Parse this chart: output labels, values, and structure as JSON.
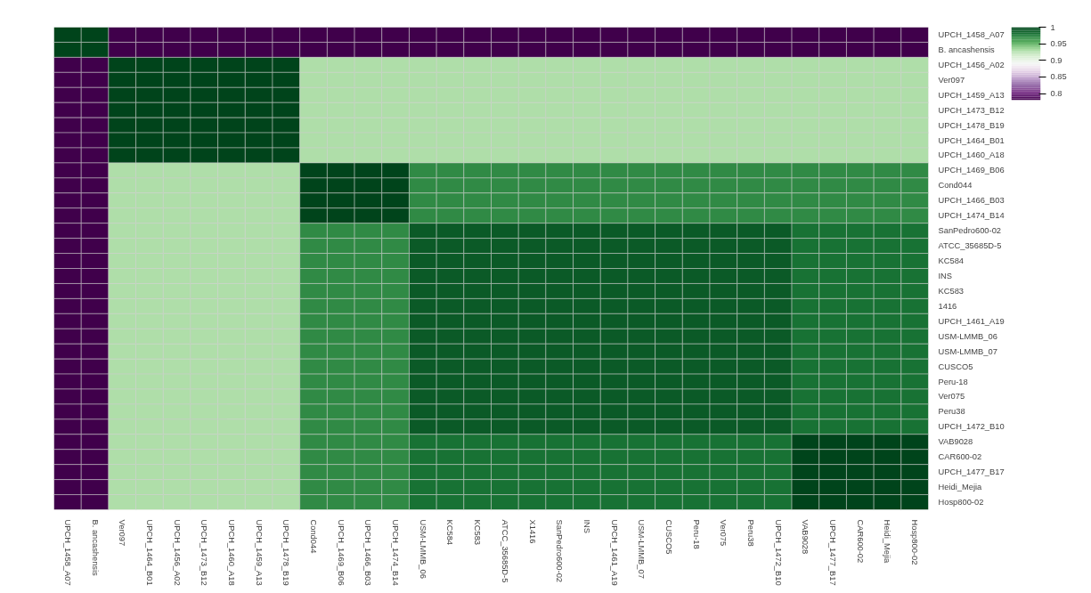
{
  "chart_data": {
    "type": "heatmap",
    "categories": [
      "UPCH_1458_A07",
      "B. ancashensis",
      "Ver097",
      "UPCH_1464_B01",
      "UPCH_1456_A02",
      "UPCH_1473_B12",
      "UPCH_1460_A18",
      "UPCH_1459_A13",
      "UPCH_1478_B19",
      "Cond044",
      "UPCH_1469_B06",
      "UPCH_1466_B03",
      "UPCH_1474_B14",
      "USM-LMMB_06",
      "KC584",
      "KC583",
      "ATCC_35685D-5",
      "X1416",
      "SanPedro600-02",
      "INS",
      "UPCH_1461_A19",
      "USM-LMMB_07",
      "CUSCO5",
      "Peru-18",
      "Ver075",
      "Peru38",
      "UPCH_1472_B10",
      "VAB9028",
      "UPCH_1477_B17",
      "CAR600-02",
      "Heidi_Mejia",
      "Hosp800-02"
    ],
    "y_categories": [
      "UPCH_1458_A07",
      "B. ancashensis",
      "UPCH_1456_A02",
      "Ver097",
      "UPCH_1459_A13",
      "UPCH_1473_B12",
      "UPCH_1478_B19",
      "UPCH_1464_B01",
      "UPCH_1460_A18",
      "UPCH_1469_B06",
      "Cond044",
      "UPCH_1466_B03",
      "UPCH_1474_B14",
      "SanPedro600-02",
      "ATCC_35685D-5",
      "KC584",
      "INS",
      "KC583",
      "1416",
      "UPCH_1461_A19",
      "USM-LMMB_06",
      "USM-LMMB_07",
      "CUSCO5",
      "Peru-18",
      "Ver075",
      "Peru38",
      "UPCH_1472_B10",
      "VAB9028",
      "CAR600-02",
      "UPCH_1477_B17",
      "Heidi_Mejia",
      "Hosp800-02"
    ],
    "cells": [
      [
        1,
        1,
        0.78,
        0.78,
        0.78,
        0.78,
        0.78,
        0.78,
        0.78,
        0.78,
        0.78,
        0.78,
        0.78,
        0.78,
        0.78,
        0.78,
        0.78,
        0.78,
        0.78,
        0.78,
        0.78,
        0.78,
        0.78,
        0.78,
        0.78,
        0.78,
        0.78,
        0.78,
        0.78,
        0.78,
        0.78,
        0.78
      ],
      [
        1,
        1,
        0.78,
        0.78,
        0.78,
        0.78,
        0.78,
        0.78,
        0.78,
        0.78,
        0.78,
        0.78,
        0.78,
        0.78,
        0.78,
        0.78,
        0.78,
        0.78,
        0.78,
        0.78,
        0.78,
        0.78,
        0.78,
        0.78,
        0.78,
        0.78,
        0.78,
        0.78,
        0.78,
        0.78,
        0.78,
        0.78
      ],
      [
        0.78,
        0.78,
        1,
        1,
        1,
        1,
        1,
        1,
        1,
        0.93,
        0.93,
        0.93,
        0.93,
        0.93,
        0.93,
        0.93,
        0.93,
        0.93,
        0.93,
        0.93,
        0.93,
        0.93,
        0.93,
        0.93,
        0.93,
        0.93,
        0.93,
        0.93,
        0.93,
        0.93,
        0.93,
        0.93
      ],
      [
        0.78,
        0.78,
        1,
        1,
        1,
        1,
        1,
        1,
        1,
        0.93,
        0.93,
        0.93,
        0.93,
        0.93,
        0.93,
        0.93,
        0.93,
        0.93,
        0.93,
        0.93,
        0.93,
        0.93,
        0.93,
        0.93,
        0.93,
        0.93,
        0.93,
        0.93,
        0.93,
        0.93,
        0.93,
        0.93
      ],
      [
        0.78,
        0.78,
        1,
        1,
        1,
        1,
        1,
        1,
        1,
        0.93,
        0.93,
        0.93,
        0.93,
        0.93,
        0.93,
        0.93,
        0.93,
        0.93,
        0.93,
        0.93,
        0.93,
        0.93,
        0.93,
        0.93,
        0.93,
        0.93,
        0.93,
        0.93,
        0.93,
        0.93,
        0.93,
        0.93
      ],
      [
        0.78,
        0.78,
        1,
        1,
        1,
        1,
        1,
        1,
        1,
        0.93,
        0.93,
        0.93,
        0.93,
        0.93,
        0.93,
        0.93,
        0.93,
        0.93,
        0.93,
        0.93,
        0.93,
        0.93,
        0.93,
        0.93,
        0.93,
        0.93,
        0.93,
        0.93,
        0.93,
        0.93,
        0.93,
        0.93
      ],
      [
        0.78,
        0.78,
        1,
        1,
        1,
        1,
        1,
        1,
        1,
        0.93,
        0.93,
        0.93,
        0.93,
        0.93,
        0.93,
        0.93,
        0.93,
        0.93,
        0.93,
        0.93,
        0.93,
        0.93,
        0.93,
        0.93,
        0.93,
        0.93,
        0.93,
        0.93,
        0.93,
        0.93,
        0.93,
        0.93
      ],
      [
        0.78,
        0.78,
        1,
        1,
        1,
        1,
        1,
        1,
        1,
        0.93,
        0.93,
        0.93,
        0.93,
        0.93,
        0.93,
        0.93,
        0.93,
        0.93,
        0.93,
        0.93,
        0.93,
        0.93,
        0.93,
        0.93,
        0.93,
        0.93,
        0.93,
        0.93,
        0.93,
        0.93,
        0.93,
        0.93
      ],
      [
        0.78,
        0.78,
        1,
        1,
        1,
        1,
        1,
        1,
        1,
        0.93,
        0.93,
        0.93,
        0.93,
        0.93,
        0.93,
        0.93,
        0.93,
        0.93,
        0.93,
        0.93,
        0.93,
        0.93,
        0.93,
        0.93,
        0.93,
        0.93,
        0.93,
        0.93,
        0.93,
        0.93,
        0.93,
        0.93
      ],
      [
        0.78,
        0.78,
        0.93,
        0.93,
        0.93,
        0.93,
        0.93,
        0.93,
        0.93,
        1,
        1,
        1,
        1,
        0.97,
        0.97,
        0.97,
        0.97,
        0.97,
        0.97,
        0.97,
        0.97,
        0.97,
        0.97,
        0.97,
        0.97,
        0.97,
        0.97,
        0.97,
        0.97,
        0.97,
        0.97,
        0.97
      ],
      [
        0.78,
        0.78,
        0.93,
        0.93,
        0.93,
        0.93,
        0.93,
        0.93,
        0.93,
        1,
        1,
        1,
        1,
        0.97,
        0.97,
        0.97,
        0.97,
        0.97,
        0.97,
        0.97,
        0.97,
        0.97,
        0.97,
        0.97,
        0.97,
        0.97,
        0.97,
        0.97,
        0.97,
        0.97,
        0.97,
        0.97
      ],
      [
        0.78,
        0.78,
        0.93,
        0.93,
        0.93,
        0.93,
        0.93,
        0.93,
        0.93,
        1,
        1,
        1,
        1,
        0.97,
        0.97,
        0.97,
        0.97,
        0.97,
        0.97,
        0.97,
        0.97,
        0.97,
        0.97,
        0.97,
        0.97,
        0.97,
        0.97,
        0.97,
        0.97,
        0.97,
        0.97,
        0.97
      ],
      [
        0.78,
        0.78,
        0.93,
        0.93,
        0.93,
        0.93,
        0.93,
        0.93,
        0.93,
        1,
        1,
        1,
        1,
        0.97,
        0.97,
        0.97,
        0.97,
        0.97,
        0.97,
        0.97,
        0.97,
        0.97,
        0.97,
        0.97,
        0.97,
        0.97,
        0.97,
        0.97,
        0.97,
        0.97,
        0.97,
        0.97
      ],
      [
        0.78,
        0.78,
        0.93,
        0.93,
        0.93,
        0.93,
        0.93,
        0.93,
        0.93,
        0.97,
        0.97,
        0.97,
        0.97,
        0.99,
        0.99,
        0.99,
        0.99,
        0.99,
        0.99,
        0.99,
        0.99,
        0.99,
        0.99,
        0.99,
        0.99,
        0.99,
        0.99,
        0.98,
        0.98,
        0.98,
        0.98,
        0.98
      ],
      [
        0.78,
        0.78,
        0.93,
        0.93,
        0.93,
        0.93,
        0.93,
        0.93,
        0.93,
        0.97,
        0.97,
        0.97,
        0.97,
        0.99,
        0.99,
        0.99,
        0.99,
        0.99,
        0.99,
        0.99,
        0.99,
        0.99,
        0.99,
        0.99,
        0.99,
        0.99,
        0.99,
        0.98,
        0.98,
        0.98,
        0.98,
        0.98
      ],
      [
        0.78,
        0.78,
        0.93,
        0.93,
        0.93,
        0.93,
        0.93,
        0.93,
        0.93,
        0.97,
        0.97,
        0.97,
        0.97,
        0.99,
        0.99,
        0.99,
        0.99,
        0.99,
        0.99,
        0.99,
        0.99,
        0.99,
        0.99,
        0.99,
        0.99,
        0.99,
        0.99,
        0.98,
        0.98,
        0.98,
        0.98,
        0.98
      ],
      [
        0.78,
        0.78,
        0.93,
        0.93,
        0.93,
        0.93,
        0.93,
        0.93,
        0.93,
        0.97,
        0.97,
        0.97,
        0.97,
        0.99,
        0.99,
        0.99,
        0.99,
        0.99,
        0.99,
        0.99,
        0.99,
        0.99,
        0.99,
        0.99,
        0.99,
        0.99,
        0.99,
        0.98,
        0.98,
        0.98,
        0.98,
        0.98
      ],
      [
        0.78,
        0.78,
        0.93,
        0.93,
        0.93,
        0.93,
        0.93,
        0.93,
        0.93,
        0.97,
        0.97,
        0.97,
        0.97,
        0.99,
        0.99,
        0.99,
        0.99,
        0.99,
        0.99,
        0.99,
        0.99,
        0.99,
        0.99,
        0.99,
        0.99,
        0.99,
        0.99,
        0.98,
        0.98,
        0.98,
        0.98,
        0.98
      ],
      [
        0.78,
        0.78,
        0.93,
        0.93,
        0.93,
        0.93,
        0.93,
        0.93,
        0.93,
        0.97,
        0.97,
        0.97,
        0.97,
        0.99,
        0.99,
        0.99,
        0.99,
        0.99,
        0.99,
        0.99,
        0.99,
        0.99,
        0.99,
        0.99,
        0.99,
        0.99,
        0.99,
        0.98,
        0.98,
        0.98,
        0.98,
        0.98
      ],
      [
        0.78,
        0.78,
        0.93,
        0.93,
        0.93,
        0.93,
        0.93,
        0.93,
        0.93,
        0.97,
        0.97,
        0.97,
        0.97,
        0.99,
        0.99,
        0.99,
        0.99,
        0.99,
        0.99,
        0.99,
        0.99,
        0.99,
        0.99,
        0.99,
        0.99,
        0.99,
        0.99,
        0.98,
        0.98,
        0.98,
        0.98,
        0.98
      ],
      [
        0.78,
        0.78,
        0.93,
        0.93,
        0.93,
        0.93,
        0.93,
        0.93,
        0.93,
        0.97,
        0.97,
        0.97,
        0.97,
        0.99,
        0.99,
        0.99,
        0.99,
        0.99,
        0.99,
        0.99,
        0.99,
        0.99,
        0.99,
        0.99,
        0.99,
        0.99,
        0.99,
        0.98,
        0.98,
        0.98,
        0.98,
        0.98
      ],
      [
        0.78,
        0.78,
        0.93,
        0.93,
        0.93,
        0.93,
        0.93,
        0.93,
        0.93,
        0.97,
        0.97,
        0.97,
        0.97,
        0.99,
        0.99,
        0.99,
        0.99,
        0.99,
        0.99,
        0.99,
        0.99,
        0.99,
        0.99,
        0.99,
        0.99,
        0.99,
        0.99,
        0.98,
        0.98,
        0.98,
        0.98,
        0.98
      ],
      [
        0.78,
        0.78,
        0.93,
        0.93,
        0.93,
        0.93,
        0.93,
        0.93,
        0.93,
        0.97,
        0.97,
        0.97,
        0.97,
        0.99,
        0.99,
        0.99,
        0.99,
        0.99,
        0.99,
        0.99,
        0.99,
        0.99,
        0.99,
        0.99,
        0.99,
        0.99,
        0.99,
        0.98,
        0.98,
        0.98,
        0.98,
        0.98
      ],
      [
        0.78,
        0.78,
        0.93,
        0.93,
        0.93,
        0.93,
        0.93,
        0.93,
        0.93,
        0.97,
        0.97,
        0.97,
        0.97,
        0.99,
        0.99,
        0.99,
        0.99,
        0.99,
        0.99,
        0.99,
        0.99,
        0.99,
        0.99,
        0.99,
        0.99,
        0.99,
        0.99,
        0.98,
        0.98,
        0.98,
        0.98,
        0.98
      ],
      [
        0.78,
        0.78,
        0.93,
        0.93,
        0.93,
        0.93,
        0.93,
        0.93,
        0.93,
        0.97,
        0.97,
        0.97,
        0.97,
        0.99,
        0.99,
        0.99,
        0.99,
        0.99,
        0.99,
        0.99,
        0.99,
        0.99,
        0.99,
        0.99,
        0.99,
        0.99,
        0.99,
        0.98,
        0.98,
        0.98,
        0.98,
        0.98
      ],
      [
        0.78,
        0.78,
        0.93,
        0.93,
        0.93,
        0.93,
        0.93,
        0.93,
        0.93,
        0.97,
        0.97,
        0.97,
        0.97,
        0.99,
        0.99,
        0.99,
        0.99,
        0.99,
        0.99,
        0.99,
        0.99,
        0.99,
        0.99,
        0.99,
        0.99,
        0.99,
        0.99,
        0.98,
        0.98,
        0.98,
        0.98,
        0.98
      ],
      [
        0.78,
        0.78,
        0.93,
        0.93,
        0.93,
        0.93,
        0.93,
        0.93,
        0.93,
        0.97,
        0.97,
        0.97,
        0.97,
        0.99,
        0.99,
        0.99,
        0.99,
        0.99,
        0.99,
        0.99,
        0.99,
        0.99,
        0.99,
        0.99,
        0.99,
        0.99,
        0.99,
        0.98,
        0.98,
        0.98,
        0.98,
        0.98
      ],
      [
        0.78,
        0.78,
        0.93,
        0.93,
        0.93,
        0.93,
        0.93,
        0.93,
        0.93,
        0.97,
        0.97,
        0.97,
        0.97,
        0.98,
        0.98,
        0.98,
        0.98,
        0.98,
        0.98,
        0.98,
        0.98,
        0.98,
        0.98,
        0.98,
        0.98,
        0.98,
        0.98,
        1,
        1,
        1,
        1,
        1
      ],
      [
        0.78,
        0.78,
        0.93,
        0.93,
        0.93,
        0.93,
        0.93,
        0.93,
        0.93,
        0.97,
        0.97,
        0.97,
        0.97,
        0.98,
        0.98,
        0.98,
        0.98,
        0.98,
        0.98,
        0.98,
        0.98,
        0.98,
        0.98,
        0.98,
        0.98,
        0.98,
        0.98,
        1,
        1,
        1,
        1,
        1
      ],
      [
        0.78,
        0.78,
        0.93,
        0.93,
        0.93,
        0.93,
        0.93,
        0.93,
        0.93,
        0.97,
        0.97,
        0.97,
        0.97,
        0.98,
        0.98,
        0.98,
        0.98,
        0.98,
        0.98,
        0.98,
        0.98,
        0.98,
        0.98,
        0.98,
        0.98,
        0.98,
        0.98,
        1,
        1,
        1,
        1,
        1
      ],
      [
        0.78,
        0.78,
        0.93,
        0.93,
        0.93,
        0.93,
        0.93,
        0.93,
        0.93,
        0.97,
        0.97,
        0.97,
        0.97,
        0.98,
        0.98,
        0.98,
        0.98,
        0.98,
        0.98,
        0.98,
        0.98,
        0.98,
        0.98,
        0.98,
        0.98,
        0.98,
        0.98,
        1,
        1,
        1,
        1,
        1
      ],
      [
        0.78,
        0.78,
        0.93,
        0.93,
        0.93,
        0.93,
        0.93,
        0.93,
        0.93,
        0.97,
        0.97,
        0.97,
        0.97,
        0.98,
        0.98,
        0.98,
        0.98,
        0.98,
        0.98,
        0.98,
        0.98,
        0.98,
        0.98,
        0.98,
        0.98,
        0.98,
        0.98,
        1,
        1,
        1,
        1,
        1
      ]
    ],
    "clim": [
      0.78,
      1
    ],
    "cticks": [
      0.8,
      0.85,
      0.9,
      0.95,
      1
    ]
  }
}
